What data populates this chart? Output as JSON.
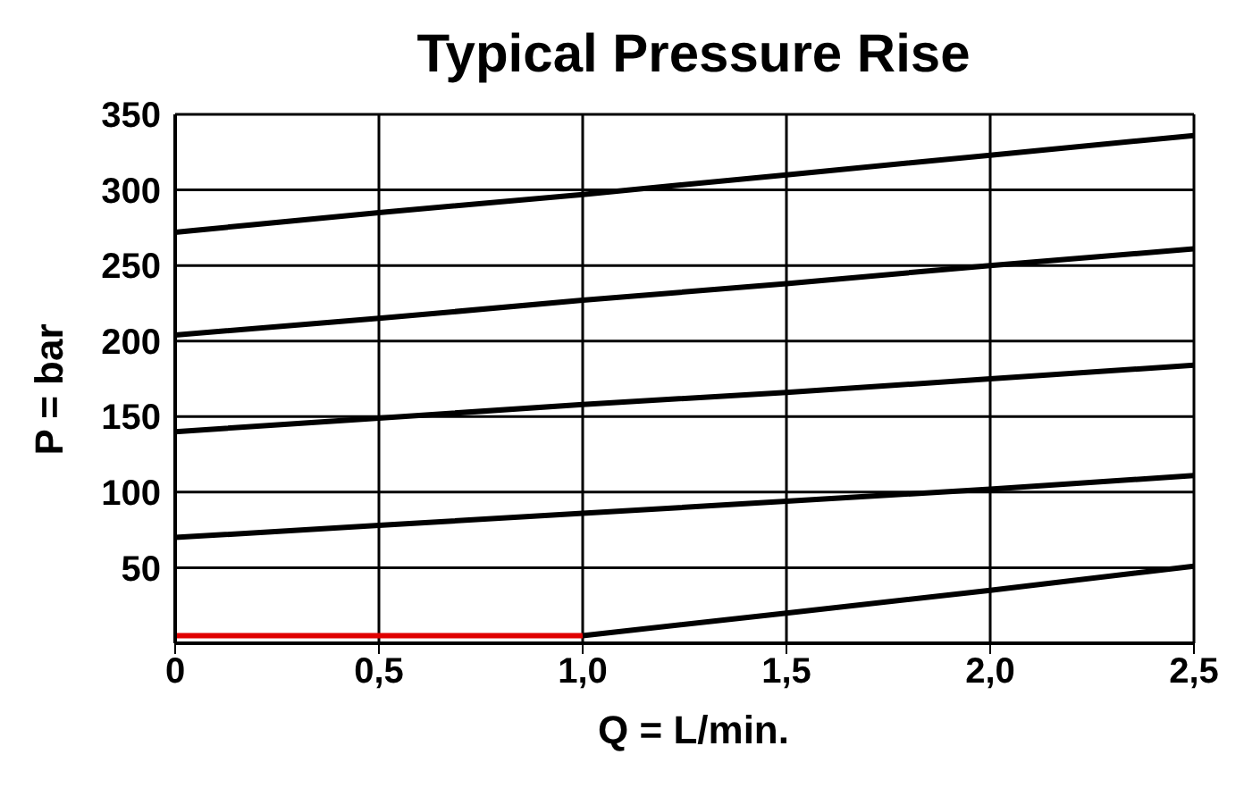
{
  "chart_data": {
    "type": "line",
    "title": "Typical Pressure Rise",
    "xlabel": "Q = L/min.",
    "ylabel": "P = bar",
    "series": [
      {
        "color": "#000000",
        "x": [
          0,
          0.5,
          1,
          1.5,
          2,
          2.5
        ],
        "values": [
          272,
          285,
          297,
          310,
          323,
          336
        ]
      },
      {
        "color": "#000000",
        "x": [
          0,
          0.5,
          1,
          1.5,
          2,
          2.5
        ],
        "values": [
          204,
          215,
          227,
          238,
          250,
          261
        ]
      },
      {
        "color": "#000000",
        "x": [
          0,
          0.5,
          1,
          1.5,
          2,
          2.5
        ],
        "values": [
          140,
          149,
          158,
          166,
          175,
          184
        ]
      },
      {
        "color": "#000000",
        "x": [
          0,
          0.5,
          1,
          1.5,
          2,
          2.5
        ],
        "values": [
          70,
          78,
          86,
          94,
          102,
          111
        ]
      },
      {
        "color": "#e00000",
        "x": [
          0,
          1
        ],
        "values": [
          5,
          5
        ]
      },
      {
        "color": "#000000",
        "x": [
          1,
          1.5,
          2,
          2.5
        ],
        "values": [
          5,
          20,
          35,
          51
        ]
      }
    ],
    "xlim": [
      0,
      2.5
    ],
    "xticks": [
      0,
      {
        "value": 0.5,
        "label": "0,5"
      },
      {
        "value": 1,
        "label": "1,0"
      },
      {
        "value": 1.5,
        "label": "1,5"
      },
      {
        "value": 2,
        "label": "2,0"
      },
      {
        "value": 2.5,
        "label": "2,5"
      }
    ],
    "ylim": [
      0,
      350
    ],
    "yticks": [
      50,
      100,
      150,
      200,
      250,
      300,
      350
    ],
    "grid": true,
    "legend": false,
    "marker": "none",
    "line_style": "solid"
  }
}
